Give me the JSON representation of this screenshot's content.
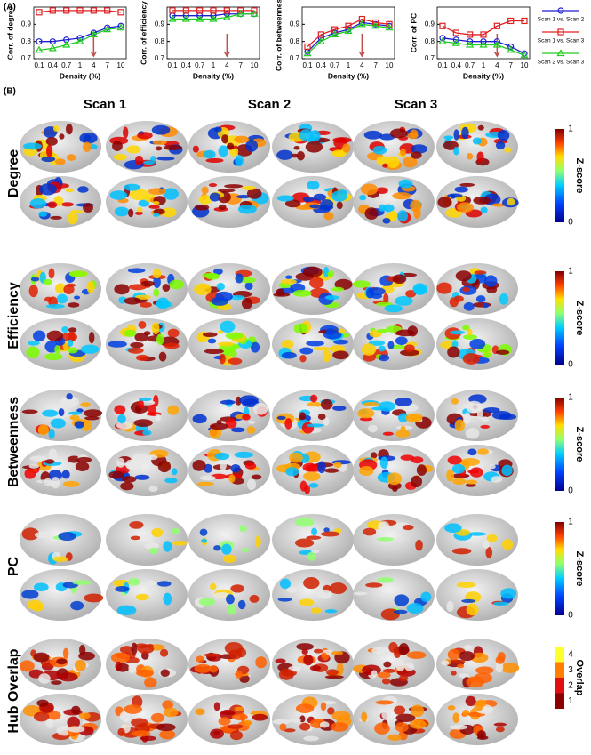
{
  "panel_labels": [
    "(A)",
    "(B)"
  ],
  "chart_data": [
    {
      "type": "line",
      "ylabel": "Corr. of degree",
      "xlabel": "Density (%)",
      "categories": [
        "0.1",
        "0.4",
        "0.7",
        "1",
        "4",
        "7",
        "10"
      ],
      "ylim": [
        0.7,
        1
      ],
      "yticks": [
        0.7,
        0.8,
        0.9
      ],
      "series": [
        {
          "name": "Scan 1 vs. Scan 2",
          "color": "#1f1fd0",
          "marker": "circle",
          "values": [
            0.8,
            0.8,
            0.81,
            0.82,
            0.85,
            0.88,
            0.89
          ]
        },
        {
          "name": "Scan 1 vs. Scan 3",
          "color": "#e02020",
          "marker": "square",
          "values": [
            0.97,
            0.98,
            0.98,
            0.98,
            0.98,
            0.98,
            0.97
          ]
        },
        {
          "name": "Scan 2 vs. Scan 3",
          "color": "#22cc22",
          "marker": "triangle",
          "values": [
            0.75,
            0.76,
            0.78,
            0.8,
            0.84,
            0.87,
            0.88
          ]
        }
      ]
    },
    {
      "type": "line",
      "ylabel": "Corr. of efficiency",
      "xlabel": "Density (%)",
      "categories": [
        "0.1",
        "0.4",
        "0.7",
        "1",
        "4",
        "7",
        "10"
      ],
      "ylim": [
        0.7,
        1
      ],
      "yticks": [
        0.7,
        0.8,
        0.9
      ],
      "series": [
        {
          "name": "Scan 1 vs. Scan 2",
          "color": "#1f1fd0",
          "marker": "circle",
          "values": [
            0.95,
            0.95,
            0.95,
            0.95,
            0.96,
            0.96,
            0.96
          ]
        },
        {
          "name": "Scan 1 vs. Scan 3",
          "color": "#e02020",
          "marker": "square",
          "values": [
            0.98,
            0.98,
            0.98,
            0.98,
            0.98,
            0.98,
            0.98
          ]
        },
        {
          "name": "Scan 2 vs. Scan 3",
          "color": "#22cc22",
          "marker": "triangle",
          "values": [
            0.93,
            0.93,
            0.93,
            0.93,
            0.94,
            0.96,
            0.96
          ]
        }
      ]
    },
    {
      "type": "line",
      "ylabel": "Corr. of betweenness",
      "xlabel": "Density (%)",
      "categories": [
        "0.1",
        "0.4",
        "0.7",
        "1",
        "4",
        "7",
        "10"
      ],
      "ylim": [
        0.7,
        1
      ],
      "yticks": [
        0.7,
        0.8,
        0.9
      ],
      "series": [
        {
          "name": "Scan 1 vs. Scan 2",
          "color": "#1f1fd0",
          "marker": "circle",
          "values": [
            0.74,
            0.82,
            0.85,
            0.87,
            0.91,
            0.9,
            0.89
          ]
        },
        {
          "name": "Scan 1 vs. Scan 3",
          "color": "#e02020",
          "marker": "square",
          "values": [
            0.77,
            0.84,
            0.87,
            0.89,
            0.93,
            0.91,
            0.9
          ]
        },
        {
          "name": "Scan 2 vs. Scan 3",
          "color": "#22cc22",
          "marker": "triangle",
          "values": [
            0.73,
            0.8,
            0.84,
            0.86,
            0.9,
            0.89,
            0.88
          ]
        }
      ]
    },
    {
      "type": "line",
      "ylabel": "Corr. of PC",
      "xlabel": "Density (%)",
      "categories": [
        "0.1",
        "0.4",
        "0.7",
        "1",
        "4",
        "7",
        "10"
      ],
      "ylim": [
        0.7,
        1
      ],
      "yticks": [
        0.7,
        0.8,
        0.9
      ],
      "series": [
        {
          "name": "Scan 1 vs. Scan 2",
          "color": "#1f1fd0",
          "marker": "circle",
          "values": [
            0.82,
            0.81,
            0.8,
            0.8,
            0.8,
            0.77,
            0.73
          ]
        },
        {
          "name": "Scan 1 vs. Scan 3",
          "color": "#e02020",
          "marker": "square",
          "values": [
            0.89,
            0.85,
            0.84,
            0.84,
            0.89,
            0.92,
            0.92
          ]
        },
        {
          "name": "Scan 2 vs. Scan 3",
          "color": "#22cc22",
          "marker": "triangle",
          "values": [
            0.8,
            0.79,
            0.78,
            0.78,
            0.78,
            0.75,
            0.72
          ]
        }
      ]
    }
  ],
  "brain_maps": {
    "columns": [
      "Scan 1",
      "Scan 2",
      "Scan 3"
    ],
    "rows": [
      "Degree",
      "Efficiency",
      "Betweenness",
      "PC",
      "Hub Overlap"
    ],
    "colorbars": [
      {
        "label": "Z-score",
        "ticks": [
          1,
          0
        ]
      },
      {
        "label": "Z-score",
        "ticks": [
          1,
          0
        ]
      },
      {
        "label": "Z-score",
        "ticks": [
          1,
          0
        ]
      },
      {
        "label": "Z-score",
        "ticks": [
          1,
          0
        ]
      },
      {
        "label": "Overlap",
        "ticks": [
          4,
          3,
          2,
          1
        ]
      }
    ]
  }
}
